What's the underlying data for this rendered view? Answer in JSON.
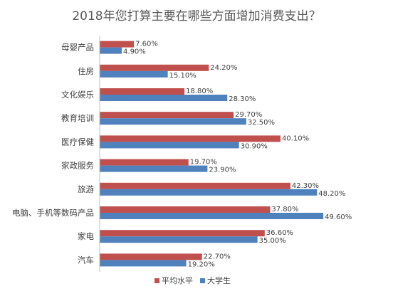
{
  "chart_data": {
    "type": "bar",
    "orientation": "horizontal",
    "title": "2018年您打算主要在哪些方面增加消费支出？",
    "categories": [
      "母婴产品",
      "住房",
      "文化娱乐",
      "教育培训",
      "医疗保健",
      "家政服务",
      "旅游",
      "电脑、手机等数码产品",
      "家电",
      "汽车"
    ],
    "series": [
      {
        "name": "平均水平",
        "color": "#c0504d",
        "values": [
          7.6,
          24.2,
          18.8,
          29.7,
          40.1,
          19.7,
          42.3,
          37.8,
          36.6,
          22.7
        ],
        "labels": [
          "7.60%",
          "24.20%",
          "18.80%",
          "29.70%",
          "40.10%",
          "19.70%",
          "42.30%",
          "37.80%",
          "36.60%",
          "22.70%"
        ]
      },
      {
        "name": "大学生",
        "color": "#4f81bd",
        "values": [
          4.9,
          15.1,
          28.3,
          32.5,
          30.9,
          23.9,
          48.2,
          49.6,
          35.0,
          19.2
        ],
        "labels": [
          "4.90%",
          "15.10%",
          "28.30%",
          "32.50%",
          "30.90%",
          "23.90%",
          "48.20%",
          "49.60%",
          "35.00%",
          "19.20%"
        ]
      }
    ],
    "xlim": [
      0,
      60
    ],
    "grid": false,
    "legend_position": "bottom"
  }
}
